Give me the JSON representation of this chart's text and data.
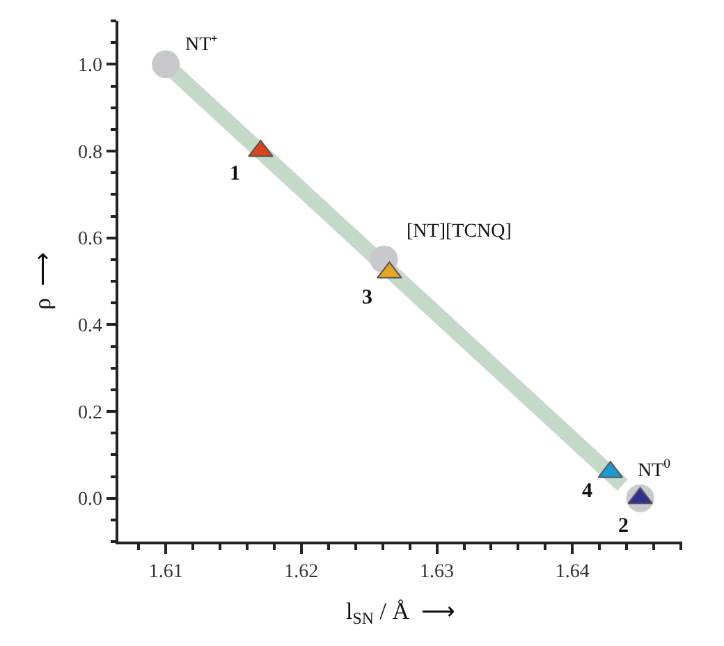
{
  "chart_data": {
    "type": "scatter",
    "xlabel": "l$_{SN}$ / Å  ⟶",
    "ylabel": "ρ  ⟶",
    "xlim": [
      1.6065,
      1.6481
    ],
    "xticks": [
      1.61,
      1.62,
      1.63,
      1.64
    ],
    "ylim": [
      -0.1,
      1.1
    ],
    "yticks": [
      {
        "value": 0,
        "label": "0.0"
      },
      {
        "value": 0.2,
        "label": "0.2"
      },
      {
        "value": 0.4,
        "label": "0.4"
      },
      {
        "value": 0.6,
        "label": "0.6"
      },
      {
        "value": 0.8,
        "label": "0.8"
      },
      {
        "value": 1,
        "label": "1.0"
      }
    ],
    "series": [
      {
        "type": "line",
        "color": "#c5d9c9",
        "x": [
          1.61,
          1.6437
        ],
        "values": [
          1.0,
          0.03
        ],
        "marker": "none"
      },
      {
        "color": "#c8c9cc",
        "x": [
          1.61,
          1.6261,
          1.645
        ],
        "values": [
          1.0,
          0.55,
          0.0
        ],
        "marker": "circle"
      },
      {
        "colors": [
          "#d9441c",
          "#e8a41c",
          "#1a9ad0",
          "#322f94"
        ],
        "x": [
          1.617,
          1.6265,
          1.6428,
          1.645
        ],
        "values": [
          0.8,
          0.52,
          0.06,
          0.0
        ],
        "marker": "triangle"
      }
    ],
    "annotations": [
      {
        "text": "NT⁺",
        "x": 1.61,
        "y": 1.0
      },
      {
        "text": "[NT][TCNQ]",
        "x": 1.6261,
        "y": 0.55
      },
      {
        "text": "NT$^{0}$",
        "x": 1.645,
        "y": 0.0
      },
      {
        "text": "1",
        "x": 1.617,
        "y": 0.8
      },
      {
        "text": "3",
        "x": 1.6265,
        "y": 0.52
      },
      {
        "text": "4",
        "x": 1.6428,
        "y": 0.06
      },
      {
        "text": "2",
        "x": 1.645,
        "y": 0.0
      }
    ]
  }
}
